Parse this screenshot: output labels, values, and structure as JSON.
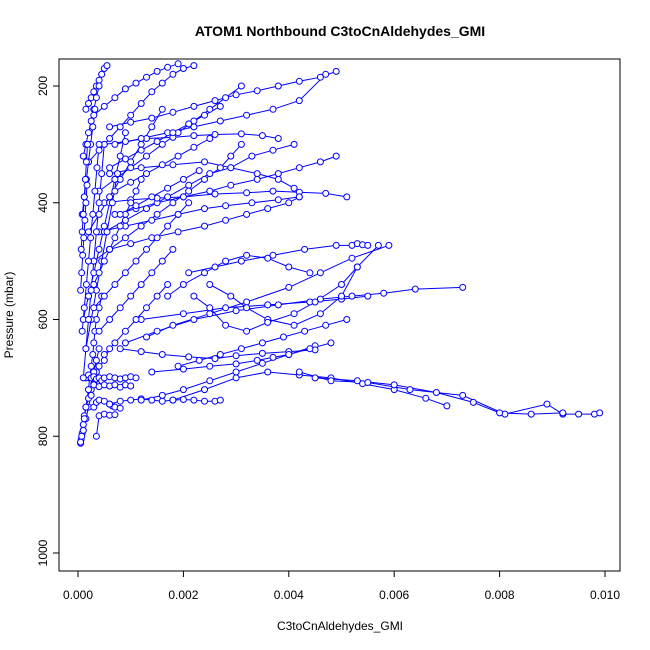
{
  "chart_data": {
    "type": "line",
    "title": "ATOM1 Northbound C3toCnAldehydes_GMI",
    "xlabel": "C3toCnAldehydes_GMI",
    "ylabel": "Pressure (mbar)",
    "xlim": [
      0.0,
      0.01
    ],
    "ylim": [
      1040,
      160
    ],
    "y_reversed": true,
    "x_ticks": [
      "0.000",
      "0.002",
      "0.004",
      "0.006",
      "0.008",
      "0.010"
    ],
    "y_ticks": [
      "200",
      "400",
      "600",
      "800",
      "1000"
    ],
    "grid": false,
    "legend": "none",
    "series_color": "#0000ff",
    "series": [
      {
        "x": [
          5e-05,
          6e-05,
          8e-05,
          0.0001,
          0.00012,
          0.00015,
          0.0002,
          0.00025,
          0.0003,
          0.00035,
          0.0004,
          0.0005,
          0.0006
        ],
        "y": [
          812,
          805,
          795,
          780,
          765,
          750,
          735,
          720,
          700,
          690,
          680,
          670,
          650
        ]
      },
      {
        "x": [
          5e-05,
          7e-05,
          0.0001,
          0.00015,
          0.0002,
          0.00025,
          0.0003,
          0.0003,
          0.00035,
          0.0004
        ],
        "y": [
          810,
          800,
          790,
          770,
          750,
          730,
          710,
          690,
          670,
          650
        ]
      },
      {
        "x": [
          0.0001,
          0.00012,
          0.00015,
          0.0002,
          0.00022,
          0.00025,
          0.00028,
          0.0003,
          0.00032,
          0.00035,
          0.0004,
          0.00045
        ],
        "y": [
          790,
          770,
          750,
          720,
          700,
          680,
          660,
          640,
          620,
          600,
          580,
          560
        ]
      },
      {
        "x": [
          0.00015,
          0.0002,
          0.00025,
          0.0003,
          0.00035,
          0.0004,
          0.00045,
          0.0005,
          0.0006,
          0.0007,
          0.0008,
          0.0009,
          0.001,
          0.0011
        ],
        "y": [
          700,
          695,
          700,
          698,
          702,
          700,
          705,
          700,
          698,
          700,
          702,
          700,
          698,
          700
        ]
      },
      {
        "x": [
          0.0003,
          0.0004,
          0.0005,
          0.0006,
          0.0007,
          0.0008,
          0.0009,
          0.001
        ],
        "y": [
          712,
          715,
          712,
          714,
          712,
          716,
          712,
          714
        ]
      },
      {
        "x": [
          0.0003,
          0.00035,
          0.0004,
          0.0005,
          0.0006,
          0.00065,
          0.0007,
          0.0008
        ],
        "y": [
          750,
          742,
          738,
          740,
          745,
          748,
          750,
          752
        ]
      },
      {
        "x": [
          0.00035,
          0.0004,
          0.0005,
          0.0006,
          0.0007
        ],
        "y": [
          800,
          765,
          762,
          764,
          763
        ]
      },
      {
        "x": [
          0.0006,
          0.0008,
          0.001,
          0.0012,
          0.0014,
          0.0016,
          0.0018,
          0.002,
          0.0022,
          0.0024,
          0.0026,
          0.0027
        ],
        "y": [
          745,
          740,
          738,
          736,
          738,
          740,
          738,
          737,
          738,
          740,
          740,
          738
        ]
      },
      {
        "x": [
          0.0012,
          0.0016,
          0.002,
          0.0025,
          0.003,
          0.0035,
          0.004,
          0.0045
        ],
        "y": [
          738,
          730,
          720,
          705,
          690,
          675,
          660,
          645
        ]
      },
      {
        "x": [
          0.0018,
          0.0024,
          0.003,
          0.0036,
          0.0042,
          0.0048,
          0.0054,
          0.006,
          0.0066,
          0.007
        ],
        "y": [
          738,
          720,
          700,
          690,
          695,
          700,
          710,
          720,
          735,
          748
        ]
      },
      {
        "x": [
          0.0042,
          0.0048,
          0.0055,
          0.0063,
          0.0073,
          0.0081,
          0.0089,
          0.0092,
          0.0095,
          0.0098,
          0.0099
        ],
        "y": [
          690,
          705,
          708,
          720,
          730,
          762,
          745,
          762,
          762,
          762,
          760
        ]
      },
      {
        "x": [
          0.0045,
          0.0053,
          0.006,
          0.0068,
          0.0075,
          0.008,
          0.0086,
          0.0092
        ],
        "y": [
          700,
          705,
          712,
          725,
          742,
          760,
          762,
          760
        ]
      },
      {
        "x": [
          0.0009,
          0.0015,
          0.0022,
          0.003,
          0.0038,
          0.0046,
          0.0052,
          0.0058,
          0.0064,
          0.0073
        ],
        "y": [
          640,
          620,
          600,
          585,
          575,
          565,
          560,
          555,
          548,
          545
        ]
      },
      {
        "x": [
          0.0012,
          0.002,
          0.0028,
          0.0036,
          0.0044,
          0.005,
          0.0055
        ],
        "y": [
          600,
          590,
          580,
          575,
          570,
          565,
          560
        ]
      },
      {
        "x": [
          0.0013,
          0.0018,
          0.0025,
          0.0032,
          0.004,
          0.0046,
          0.0052,
          0.0059
        ],
        "y": [
          630,
          610,
          590,
          570,
          545,
          520,
          495,
          473
        ]
      },
      {
        "x": [
          0.0021,
          0.0026,
          0.0031,
          0.0037,
          0.0043,
          0.0049,
          0.0052,
          0.0053,
          0.0054,
          0.0055
        ],
        "y": [
          520,
          510,
          500,
          490,
          480,
          473,
          473,
          470,
          472,
          473
        ]
      },
      {
        "x": [
          0.0025,
          0.0029,
          0.0032,
          0.0036,
          0.0041,
          0.0046,
          0.005,
          0.0053,
          0.0057
        ],
        "y": [
          540,
          560,
          580,
          600,
          610,
          590,
          560,
          510,
          473
        ]
      },
      {
        "x": [
          0.0022,
          0.0025,
          0.0028,
          0.0032,
          0.0036,
          0.0041,
          0.0045,
          0.005,
          0.0053
        ],
        "y": [
          560,
          580,
          610,
          620,
          605,
          590,
          570,
          540,
          510
        ]
      },
      {
        "x": [
          0.0017,
          0.002,
          0.0024,
          0.0028,
          0.0032,
          0.0036,
          0.004,
          0.0044
        ],
        "y": [
          560,
          540,
          520,
          500,
          490,
          495,
          510,
          520
        ]
      },
      {
        "x": [
          0.0008,
          0.0012,
          0.0016,
          0.0021,
          0.0026,
          0.003,
          0.0035,
          0.004,
          0.0045
        ],
        "y": [
          650,
          655,
          660,
          664,
          667,
          662,
          658,
          655,
          652
        ]
      },
      {
        "x": [
          0.0014,
          0.002,
          0.0025,
          0.003,
          0.0034,
          0.0037,
          0.004,
          0.0044,
          0.0048
        ],
        "y": [
          690,
          685,
          680,
          676,
          670,
          665,
          660,
          650,
          640
        ]
      },
      {
        "x": [
          0.0019,
          0.0023,
          0.0027,
          0.0031,
          0.0035,
          0.0039,
          0.0043,
          0.0047,
          0.0051
        ],
        "y": [
          680,
          670,
          660,
          650,
          640,
          630,
          620,
          610,
          600
        ]
      },
      {
        "x": [
          0.0007,
          0.0011,
          0.0015,
          0.002,
          0.0025,
          0.0029,
          0.0034,
          0.0038,
          0.0042,
          0.0046,
          0.0049
        ],
        "y": [
          420,
          410,
          400,
          390,
          380,
          370,
          360,
          350,
          340,
          330,
          320
        ]
      },
      {
        "x": [
          0.0005,
          0.001,
          0.0015,
          0.002,
          0.0026,
          0.0032,
          0.0037,
          0.0042,
          0.0047,
          0.0051
        ],
        "y": [
          400,
          395,
          392,
          390,
          385,
          383,
          380,
          382,
          384,
          390
        ]
      },
      {
        "x": [
          0.0004,
          0.0009,
          0.0014,
          0.0019,
          0.0024,
          0.0028,
          0.0033,
          0.0038,
          0.0042
        ],
        "y": [
          450,
          440,
          430,
          420,
          410,
          405,
          400,
          395,
          390
        ]
      },
      {
        "x": [
          0.0006,
          0.0012,
          0.0018,
          0.0024,
          0.0029,
          0.0034,
          0.0038,
          0.0041
        ],
        "y": [
          350,
          340,
          335,
          330,
          340,
          350,
          360,
          375
        ]
      },
      {
        "x": [
          0.0005,
          0.0009,
          0.0013,
          0.0018,
          0.0022,
          0.0026,
          0.0031,
          0.0035,
          0.0038
        ],
        "y": [
          300,
          295,
          290,
          288,
          285,
          283,
          282,
          285,
          290
        ]
      },
      {
        "x": [
          0.0006,
          0.001,
          0.0014,
          0.0018,
          0.0022,
          0.0026,
          0.003,
          0.0034,
          0.0038,
          0.0042,
          0.0046,
          0.0049
        ],
        "y": [
          270,
          262,
          255,
          245,
          235,
          225,
          215,
          208,
          200,
          192,
          185,
          175
        ]
      },
      {
        "x": [
          0.0007,
          0.0012,
          0.0017,
          0.0022,
          0.0027,
          0.0032,
          0.0037,
          0.0042,
          0.0047
        ],
        "y": [
          300,
          290,
          280,
          270,
          260,
          250,
          240,
          225,
          180
        ]
      },
      {
        "x": [
          0.0005,
          0.0009,
          0.0013,
          0.0017,
          0.0021,
          0.0025,
          0.0029,
          0.0033,
          0.0037,
          0.0041
        ],
        "y": [
          450,
          430,
          410,
          390,
          370,
          350,
          340,
          320,
          310,
          300
        ]
      },
      {
        "x": [
          0.0006,
          0.001,
          0.0014,
          0.0019,
          0.0024,
          0.0028,
          0.0032,
          0.0036,
          0.004,
          0.0042
        ],
        "y": [
          480,
          470,
          460,
          450,
          440,
          430,
          420,
          410,
          400,
          390
        ]
      },
      {
        "x": [
          0.0003,
          0.0006,
          0.0009,
          0.0012,
          0.0015,
          0.0018,
          0.0021,
          0.0024,
          0.0027,
          0.0029,
          0.0031
        ],
        "y": [
          500,
          480,
          460,
          440,
          420,
          400,
          380,
          360,
          340,
          320,
          300
        ]
      },
      {
        "x": [
          0.0004,
          0.0007,
          0.001,
          0.0013,
          0.0016,
          0.0019,
          0.0022,
          0.0025,
          0.0028,
          0.0031
        ],
        "y": [
          380,
          360,
          340,
          320,
          300,
          280,
          260,
          240,
          220,
          200
        ]
      },
      {
        "x": [
          0.0002,
          0.0004,
          0.0006,
          0.0008,
          0.001,
          0.0012,
          0.0014,
          0.0016,
          0.0018,
          0.002,
          0.0022
        ],
        "y": [
          330,
          310,
          290,
          270,
          250,
          230,
          210,
          195,
          180,
          170,
          165
        ]
      },
      {
        "x": [
          0.0003,
          0.0005,
          0.0007,
          0.0009,
          0.0011,
          0.0013,
          0.0015,
          0.0017,
          0.0019
        ],
        "y": [
          250,
          235,
          220,
          205,
          195,
          185,
          175,
          168,
          162
        ]
      },
      {
        "x": [
          0.0002,
          0.0004,
          0.0006,
          0.0008,
          0.001,
          0.0012,
          0.0014,
          0.0016
        ],
        "y": [
          450,
          420,
          390,
          360,
          330,
          300,
          270,
          240
        ]
      },
      {
        "x": [
          0.0001,
          0.0002,
          0.0003,
          0.0004,
          0.0005,
          0.0006,
          0.0007,
          0.0008,
          0.0009
        ],
        "y": [
          600,
          560,
          520,
          480,
          440,
          400,
          360,
          320,
          280
        ]
      },
      {
        "x": [
          0.00015,
          0.00025,
          0.00035,
          0.00045,
          0.00055,
          0.00065,
          0.00075
        ],
        "y": [
          650,
          600,
          550,
          500,
          450,
          400,
          350
        ]
      },
      {
        "x": [
          0.0001,
          0.00015,
          0.0002,
          0.00025,
          0.0003,
          0.00035,
          0.0004,
          0.00045,
          0.0005
        ],
        "y": [
          700,
          650,
          600,
          550,
          500,
          450,
          400,
          350,
          300
        ]
      },
      {
        "x": [
          8e-05,
          0.00012,
          0.00016,
          0.0002,
          0.00024,
          0.00028,
          0.00032,
          0.00036,
          0.0004
        ],
        "y": [
          620,
          580,
          540,
          500,
          460,
          420,
          380,
          340,
          300
        ]
      },
      {
        "x": [
          0.0002,
          0.0003,
          0.0004,
          0.0005,
          0.0006,
          0.0007,
          0.0008,
          0.0009,
          0.001,
          0.0011,
          0.0012
        ],
        "y": [
          560,
          540,
          520,
          500,
          480,
          460,
          440,
          420,
          400,
          380,
          360
        ]
      },
      {
        "x": [
          0.0003,
          0.0005,
          0.0007,
          0.0009,
          0.0011,
          0.0013,
          0.0015,
          0.0017,
          0.0019,
          0.0021
        ],
        "y": [
          580,
          560,
          540,
          520,
          500,
          480,
          460,
          440,
          420,
          400
        ]
      },
      {
        "x": [
          0.0004,
          0.0006,
          0.0008,
          0.001,
          0.0012,
          0.0014,
          0.0016,
          0.0018
        ],
        "y": [
          620,
          600,
          580,
          560,
          540,
          520,
          500,
          480
        ]
      },
      {
        "x": [
          0.0005,
          0.0007,
          0.0009,
          0.0011,
          0.0013,
          0.0015,
          0.0017
        ],
        "y": [
          660,
          640,
          620,
          600,
          580,
          560,
          540
        ]
      },
      {
        "x": [
          0.00015,
          0.0002,
          0.00025,
          0.0003,
          0.00035,
          0.0004,
          0.00045,
          0.0005,
          0.00055
        ],
        "y": [
          240,
          230,
          220,
          210,
          200,
          190,
          180,
          170,
          165
        ]
      },
      {
        "x": [
          0.0001,
          0.00015,
          0.0002,
          0.00025,
          0.0003,
          0.00035,
          0.0004,
          0.00045
        ],
        "y": [
          320,
          300,
          280,
          260,
          240,
          220,
          200,
          180
        ]
      },
      {
        "x": [
          8e-05,
          0.00012,
          0.00016,
          0.0002,
          0.00024,
          0.00028,
          0.00032
        ],
        "y": [
          420,
          390,
          360,
          330,
          300,
          270,
          240
        ]
      },
      {
        "x": [
          0.0006,
          0.0009,
          0.0012,
          0.0015,
          0.0018,
          0.0021,
          0.0024,
          0.0027
        ],
        "y": [
          340,
          325,
          310,
          295,
          280,
          265,
          250,
          235
        ]
      },
      {
        "x": [
          0.0007,
          0.001,
          0.0013,
          0.0016,
          0.0019,
          0.0022,
          0.0025
        ],
        "y": [
          380,
          365,
          350,
          335,
          320,
          305,
          290
        ]
      },
      {
        "x": [
          0.0008,
          0.0011,
          0.0014,
          0.0017,
          0.002,
          0.0023
        ],
        "y": [
          420,
          405,
          390,
          375,
          360,
          345
        ]
      },
      {
        "x": [
          5e-05,
          7e-05,
          9e-05,
          0.00011,
          0.00013,
          0.00015,
          0.00017
        ],
        "y": [
          550,
          520,
          490,
          460,
          430,
          400,
          370
        ]
      },
      {
        "x": [
          6e-05,
          8e-05,
          0.0001,
          0.00012,
          0.00014,
          0.00016,
          0.00018
        ],
        "y": [
          480,
          450,
          420,
          390,
          360,
          330,
          300
        ]
      }
    ]
  }
}
